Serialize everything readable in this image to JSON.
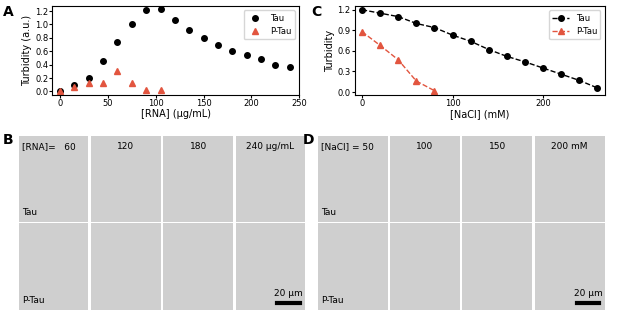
{
  "chart_data": [
    {
      "panel": "A",
      "type": "scatter",
      "x_label": "[RNA] (µg/mL)",
      "y_label": "Turbidity (a.u.)",
      "xlim": [
        -8,
        250
      ],
      "xticks": [
        0,
        50,
        100,
        150,
        200,
        250
      ],
      "ylim": [
        -0.05,
        1.27
      ],
      "yticks": [
        {
          "value": 0,
          "label": "0.0"
        },
        0.2,
        0.4,
        0.6,
        0.8,
        {
          "value": 1,
          "label": "1.0"
        },
        1.2
      ],
      "legend": "upper right",
      "series": [
        {
          "name": "Tau",
          "color": "#000000",
          "marker": "circle",
          "line_style": "none",
          "x": [
            0,
            15,
            30,
            45,
            60,
            75,
            90,
            105,
            120,
            135,
            150,
            165,
            180,
            195,
            210,
            225,
            240
          ],
          "values": [
            0.0,
            0.1,
            0.2,
            0.45,
            0.74,
            1.0,
            1.22,
            1.23,
            1.06,
            0.92,
            0.8,
            0.7,
            0.6,
            0.55,
            0.49,
            0.4,
            0.36
          ]
        },
        {
          "name": "P-Tau",
          "color": "#e2553f",
          "marker": "triangle",
          "line_style": "none",
          "x": [
            0,
            15,
            30,
            45,
            60,
            75,
            90,
            105
          ],
          "values": [
            0.0,
            0.07,
            0.13,
            0.13,
            0.31,
            0.12,
            0.02,
            0.02
          ]
        }
      ]
    },
    {
      "panel": "C",
      "type": "line",
      "x_label": "[NaCl] (mM)",
      "y_label": "Turbidity",
      "xlim": [
        -8,
        268
      ],
      "xticks": [
        0,
        100,
        200
      ],
      "ylim": [
        -0.04,
        1.25
      ],
      "yticks": [
        {
          "value": 0,
          "label": "0.0"
        },
        0.3,
        0.6,
        0.9,
        1.2
      ],
      "legend": "upper right",
      "series": [
        {
          "name": "Tau",
          "color": "#000000",
          "marker": "circle",
          "line_style": "dashed",
          "x": [
            0,
            20,
            40,
            60,
            80,
            100,
            120,
            140,
            160,
            180,
            200,
            220,
            240,
            260
          ],
          "values": [
            1.2,
            1.15,
            1.1,
            1.0,
            0.94,
            0.83,
            0.74,
            0.62,
            0.52,
            0.44,
            0.35,
            0.26,
            0.17,
            0.06
          ]
        },
        {
          "name": "P-Tau",
          "color": "#e2553f",
          "marker": "triangle",
          "line_style": "dashed",
          "x": [
            0,
            20,
            40,
            60,
            80
          ],
          "values": [
            0.88,
            0.68,
            0.47,
            0.16,
            0.02
          ]
        }
      ]
    }
  ],
  "image_panels": [
    {
      "panel": "B",
      "column_labels": [
        "[RNA]=   60",
        "120",
        "180",
        "240 µg/mL"
      ],
      "row_labels": [
        "Tau",
        "P-Tau"
      ],
      "scale_bar": "20 µm"
    },
    {
      "panel": "D",
      "column_labels": [
        "[NaCl] = 50",
        "100",
        "150",
        "200 mM"
      ],
      "row_labels": [
        "Tau",
        "P-Tau"
      ],
      "scale_bar": "20 µm"
    }
  ]
}
